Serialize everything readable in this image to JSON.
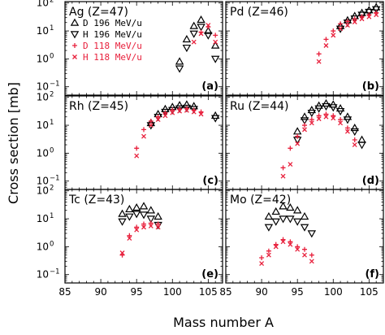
{
  "figure": {
    "ylabel": "Cross section [mb]",
    "xlabel": "Mass number A",
    "xlim": [
      85,
      107
    ],
    "ylim_log10": [
      -1.3,
      2.05
    ],
    "x_ticks": [
      85,
      90,
      95,
      100,
      105
    ],
    "y_tick_labels": [
      {
        "exp": -1,
        "text": "10",
        "sup": "−1"
      },
      {
        "exp": 0,
        "text": "10",
        "sup": "0"
      },
      {
        "exp": 1,
        "text": "10",
        "sup": "1"
      },
      {
        "exp": 2,
        "text": "10",
        "sup": "2"
      }
    ],
    "legend": [
      {
        "marker": "triangle-up",
        "label": "D 196 MeV/u",
        "color": "#000000"
      },
      {
        "marker": "triangle-down",
        "label": "H 196 MeV/u",
        "color": "#000000"
      },
      {
        "marker": "plus",
        "label": "D 118 MeV/u",
        "color": "#e8203c"
      },
      {
        "marker": "cross",
        "label": "H 118 MeV/u",
        "color": "#e8203c"
      }
    ],
    "colors": {
      "black_series": "#000000",
      "red_series": "#e8203c",
      "axes": "#000000"
    }
  },
  "chart_data": [
    {
      "type": "scatter",
      "panel": "a",
      "element": "Ag",
      "title": "Ag (Z=47)",
      "log_y": true,
      "series": [
        {
          "name": "D 196 MeV/u",
          "x": [
            101,
            102,
            103,
            104,
            105,
            106
          ],
          "y": [
            0.8,
            5,
            15,
            25,
            10,
            3
          ]
        },
        {
          "name": "H 196 MeV/u",
          "x": [
            101,
            102,
            103,
            104,
            105,
            106
          ],
          "y": [
            0.45,
            2.5,
            8,
            14,
            7,
            1
          ]
        },
        {
          "name": "D 118 MeV/u",
          "x": [
            104,
            105,
            106
          ],
          "y": [
            9,
            14,
            7
          ]
        },
        {
          "name": "H 118 MeV/u",
          "x": [
            103,
            104,
            105,
            106
          ],
          "y": [
            4,
            8,
            16,
            4
          ]
        }
      ]
    },
    {
      "type": "scatter",
      "panel": "b",
      "element": "Pd",
      "title": "Pd (Z=46)",
      "log_y": true,
      "series": [
        {
          "name": "D 196 MeV/u",
          "x": [
            101,
            102,
            103,
            104,
            105,
            106
          ],
          "y": [
            15,
            24,
            34,
            44,
            55,
            70
          ]
        },
        {
          "name": "H 196 MeV/u",
          "x": [
            101,
            102,
            103,
            104,
            105,
            106
          ],
          "y": [
            12,
            20,
            28,
            38,
            48,
            60
          ]
        },
        {
          "name": "D 118 MeV/u",
          "x": [
            98,
            99,
            100,
            101,
            102,
            103,
            104,
            105,
            106
          ],
          "y": [
            1.5,
            5,
            10,
            18,
            22,
            27,
            33,
            38,
            45
          ]
        },
        {
          "name": "H 118 MeV/u",
          "x": [
            98,
            99,
            100,
            101,
            102,
            103,
            104,
            105,
            106
          ],
          "y": [
            0.8,
            3,
            7,
            12,
            16,
            21,
            27,
            32,
            38
          ]
        }
      ]
    },
    {
      "type": "scatter",
      "panel": "c",
      "element": "Rh",
      "title": "Rh (Z=45)",
      "log_y": true,
      "series": [
        {
          "name": "D 196 MeV/u",
          "x": [
            97,
            98,
            99,
            100,
            101,
            102,
            103,
            106
          ],
          "y": [
            12,
            25,
            38,
            45,
            52,
            55,
            48,
            22
          ]
        },
        {
          "name": "H 196 MeV/u",
          "x": [
            97,
            98,
            99,
            100,
            101,
            102,
            103,
            106
          ],
          "y": [
            10,
            20,
            30,
            35,
            40,
            42,
            38,
            18
          ]
        },
        {
          "name": "D 118 MeV/u",
          "x": [
            95,
            96,
            97,
            98,
            99,
            100,
            101,
            102,
            103,
            104
          ],
          "y": [
            1.5,
            7,
            14,
            20,
            28,
            35,
            38,
            40,
            35,
            30
          ]
        },
        {
          "name": "H 118 MeV/u",
          "x": [
            95,
            96,
            97,
            98,
            99,
            100,
            101,
            102,
            103,
            104
          ],
          "y": [
            0.8,
            4,
            10,
            16,
            22,
            28,
            32,
            34,
            30,
            25
          ]
        }
      ]
    },
    {
      "type": "scatter",
      "panel": "d",
      "element": "Ru",
      "title": "Ru (Z=44)",
      "log_y": true,
      "series": [
        {
          "name": "D 196 MeV/u",
          "x": [
            95,
            96,
            97,
            98,
            99,
            100,
            101,
            102,
            103,
            104
          ],
          "y": [
            6,
            20,
            35,
            50,
            60,
            55,
            40,
            20,
            8,
            3
          ]
        },
        {
          "name": "H 196 MeV/u",
          "x": [
            95,
            96,
            97,
            98,
            99,
            100,
            101,
            102,
            103,
            104
          ],
          "y": [
            3,
            15,
            28,
            40,
            48,
            44,
            32,
            16,
            6,
            2
          ]
        },
        {
          "name": "D 118 MeV/u",
          "x": [
            93,
            94,
            95,
            96,
            97,
            98,
            99,
            100,
            101,
            102,
            103
          ],
          "y": [
            0.3,
            1.5,
            4,
            10,
            16,
            22,
            25,
            22,
            16,
            8,
            3
          ]
        },
        {
          "name": "H 118 MeV/u",
          "x": [
            93,
            94,
            95,
            96,
            97,
            98,
            99,
            100,
            101,
            102,
            103
          ],
          "y": [
            0.15,
            0.4,
            2.2,
            7,
            12,
            17,
            20,
            18,
            12,
            6,
            2
          ]
        }
      ]
    },
    {
      "type": "scatter",
      "panel": "e",
      "element": "Tc",
      "title": "Tc (Z=43)",
      "log_y": true,
      "series": [
        {
          "name": "D 196 MeV/u",
          "x": [
            93,
            94,
            95,
            96,
            97,
            98
          ],
          "y": [
            15,
            22,
            25,
            28,
            20,
            12
          ]
        },
        {
          "name": "H 196 MeV/u",
          "x": [
            93,
            94,
            95,
            96,
            97,
            98
          ],
          "y": [
            8,
            12,
            15,
            14,
            10,
            6
          ]
        },
        {
          "name": "D 118 MeV/u",
          "x": [
            93,
            94,
            95,
            96,
            97,
            98
          ],
          "y": [
            0.5,
            2.5,
            5,
            6.5,
            7,
            6.5
          ]
        },
        {
          "name": "H 118 MeV/u",
          "x": [
            93,
            94,
            95,
            96,
            97,
            98
          ],
          "y": [
            0.6,
            2,
            4,
            5,
            5.5,
            5
          ]
        }
      ]
    },
    {
      "type": "scatter",
      "panel": "f",
      "element": "Mo",
      "title": "Mo (Z=42)",
      "log_y": true,
      "series": [
        {
          "name": "D 196 MeV/u",
          "x": [
            91,
            92,
            93,
            94,
            95,
            96
          ],
          "y": [
            12,
            18,
            28,
            25,
            20,
            12
          ]
        },
        {
          "name": "H 196 MeV/u",
          "x": [
            91,
            92,
            93,
            94,
            95,
            96,
            97
          ],
          "y": [
            5,
            8,
            10,
            10,
            8,
            5,
            3
          ]
        },
        {
          "name": "D 118 MeV/u",
          "x": [
            90,
            91,
            92,
            93,
            94,
            95,
            96,
            97
          ],
          "y": [
            0.4,
            0.7,
            1.2,
            1.8,
            1.5,
            1.0,
            0.8,
            0.5
          ]
        },
        {
          "name": "H 118 MeV/u",
          "x": [
            90,
            91,
            92,
            93,
            94,
            95,
            96,
            97
          ],
          "y": [
            0.25,
            0.5,
            1.0,
            1.5,
            1.2,
            0.8,
            0.5,
            0.3
          ]
        }
      ]
    }
  ]
}
